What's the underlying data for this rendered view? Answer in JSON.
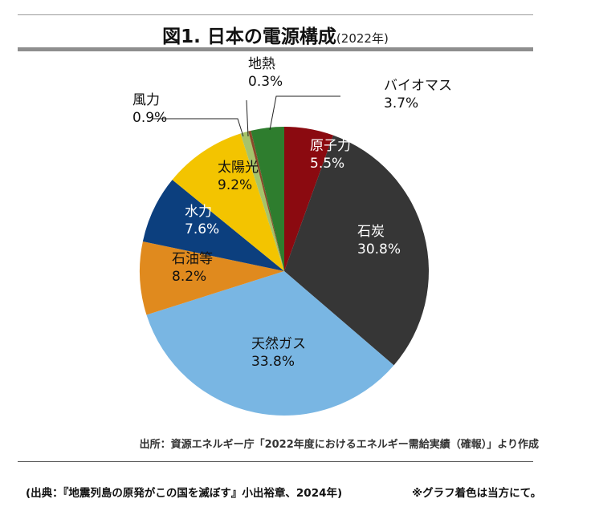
{
  "header": {
    "title": "図1. 日本の電源構成",
    "year": "(2022年)"
  },
  "footer": {
    "source": "出所：資源エネルギー庁「2022年度におけるエネルギー需給実績（確報）」より作成",
    "citation": "(出典：『地震列島の原発がこの国を滅ぼす』小出裕章、2024年)",
    "note": "※グラフ着色は当方にて。"
  },
  "chart_data": {
    "type": "pie",
    "title": "図1. 日本の電源構成",
    "subtitle": "(2022年)",
    "unit": "%",
    "slices": [
      {
        "label": "原子力",
        "value": 5.5,
        "display": "5.5%",
        "color": "#8b0a10"
      },
      {
        "label": "石炭",
        "value": 30.8,
        "display": "30.8%",
        "color": "#363636"
      },
      {
        "label": "天然ガス",
        "value": 33.8,
        "display": "33.8%",
        "color": "#79b6e3"
      },
      {
        "label": "石油等",
        "value": 8.2,
        "display": "8.2%",
        "color": "#e08a1e"
      },
      {
        "label": "水力",
        "value": 7.6,
        "display": "7.6%",
        "color": "#0c3f7e"
      },
      {
        "label": "太陽光",
        "value": 9.2,
        "display": "9.2%",
        "color": "#f3c400"
      },
      {
        "label": "風力",
        "value": 0.9,
        "display": "0.9%",
        "color": "#a6c36a"
      },
      {
        "label": "地熱",
        "value": 0.3,
        "display": "0.3%",
        "color": "#8a4a2a"
      },
      {
        "label": "バイオマス",
        "value": 3.7,
        "display": "3.7%",
        "color": "#2e7d2e"
      }
    ]
  }
}
